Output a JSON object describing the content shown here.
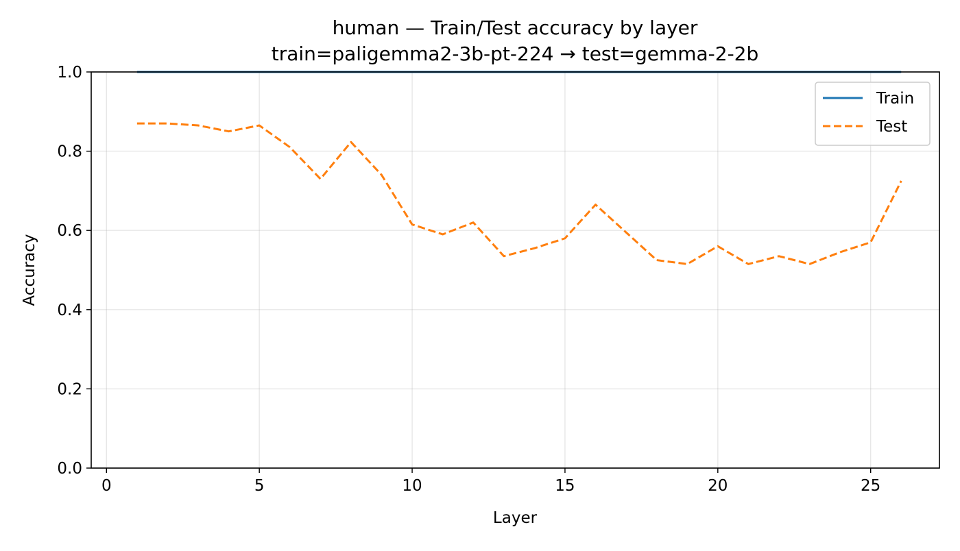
{
  "chart_data": {
    "type": "line",
    "title": "human — Train/Test accuracy by layer",
    "subtitle": "train=paligemma2-3b-pt-224 → test=gemma-2-2b",
    "xlabel": "Layer",
    "ylabel": "Accuracy",
    "xlim": [
      -0.5,
      27.25
    ],
    "ylim": [
      0.0,
      1.0
    ],
    "xticks": [
      0,
      5,
      10,
      15,
      20,
      25
    ],
    "yticks": [
      0.0,
      0.2,
      0.4,
      0.6,
      0.8,
      1.0
    ],
    "xtick_labels": [
      "0",
      "5",
      "10",
      "15",
      "20",
      "25"
    ],
    "ytick_labels": [
      "0.0",
      "0.2",
      "0.4",
      "0.6",
      "0.8",
      "1.0"
    ],
    "grid": true,
    "legend_position": "top-right",
    "x": [
      1,
      2,
      3,
      4,
      5,
      6,
      7,
      8,
      9,
      10,
      11,
      12,
      13,
      14,
      15,
      16,
      17,
      18,
      19,
      20,
      21,
      22,
      23,
      24,
      25,
      26
    ],
    "series": [
      {
        "name": "Train",
        "color": "#1f77b4",
        "style": "solid",
        "values": [
          1.0,
          1.0,
          1.0,
          1.0,
          1.0,
          1.0,
          1.0,
          1.0,
          1.0,
          1.0,
          1.0,
          1.0,
          1.0,
          1.0,
          1.0,
          1.0,
          1.0,
          1.0,
          1.0,
          1.0,
          1.0,
          1.0,
          1.0,
          1.0,
          1.0,
          1.0
        ]
      },
      {
        "name": "Test",
        "color": "#ff7f0e",
        "style": "dashed",
        "values": [
          0.87,
          0.87,
          0.865,
          0.85,
          0.865,
          0.81,
          0.73,
          0.823,
          0.74,
          0.615,
          0.59,
          0.62,
          0.535,
          0.555,
          0.58,
          0.665,
          0.595,
          0.525,
          0.515,
          0.56,
          0.515,
          0.535,
          0.515,
          0.545,
          0.57,
          0.725
        ]
      }
    ]
  }
}
